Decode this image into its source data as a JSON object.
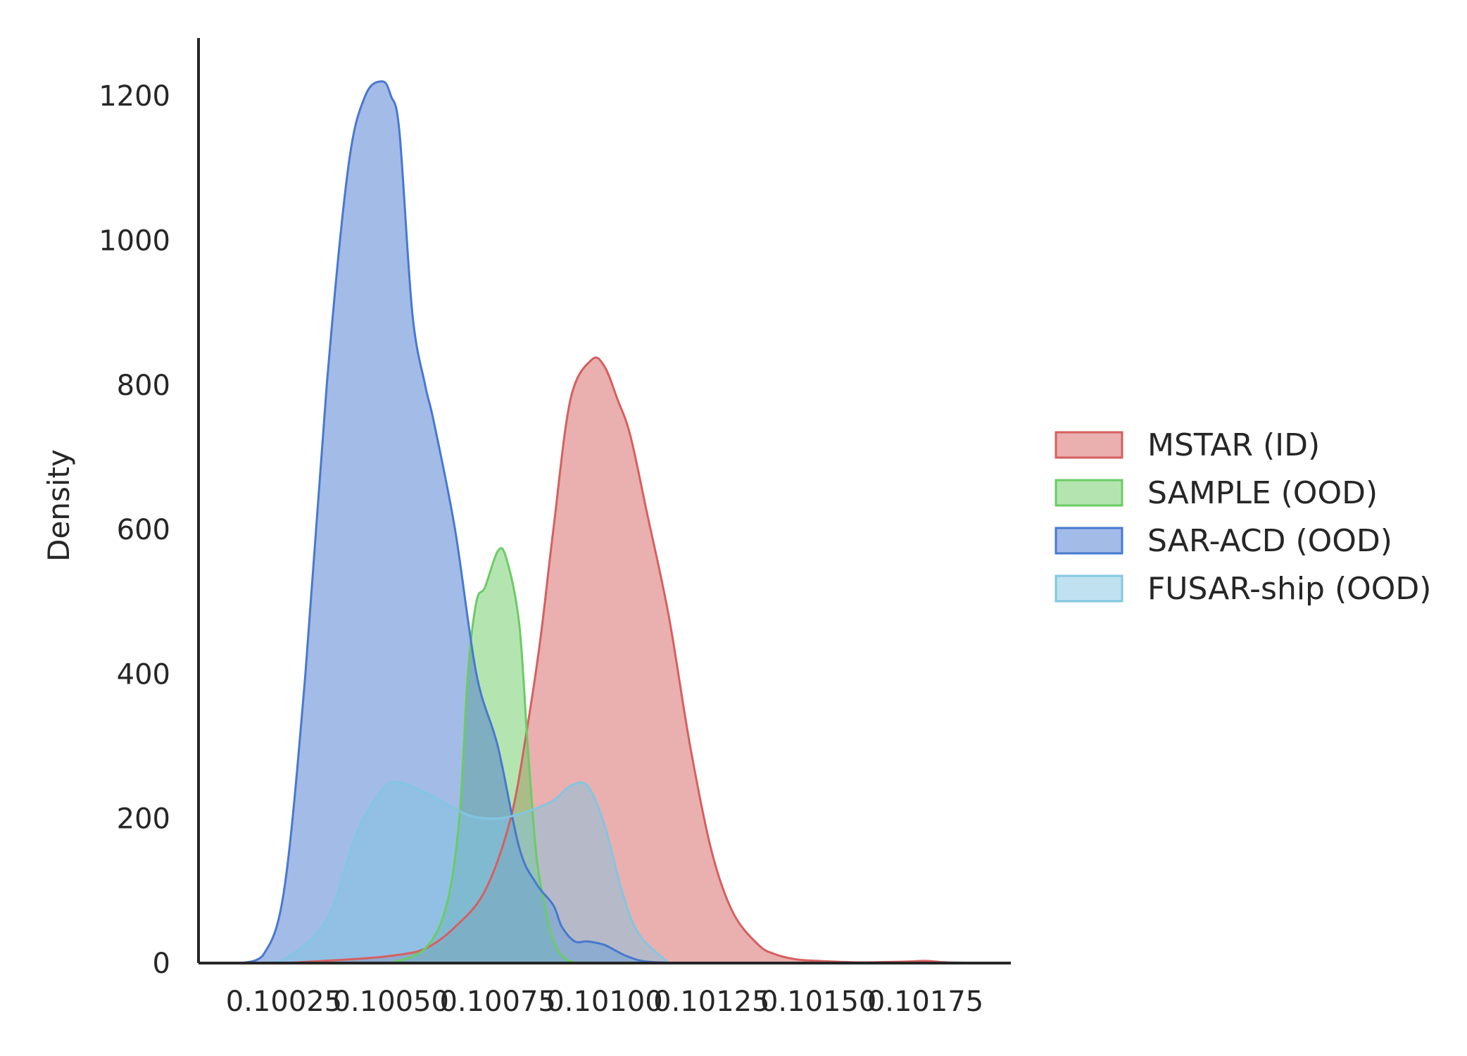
{
  "chart_data": {
    "type": "area",
    "subtype": "kde",
    "xlabel": "",
    "ylabel": "Density",
    "xlim": [
      0.10005,
      0.10195
    ],
    "ylim": [
      0,
      1280
    ],
    "x_ticks": [
      0.10025,
      0.1005,
      0.10075,
      0.101,
      0.10125,
      0.1015,
      0.10175
    ],
    "x_tick_labels": [
      "0.10025",
      "0.10050",
      "0.10075",
      "0.10100",
      "0.10125",
      "0.10150",
      "0.10175"
    ],
    "y_ticks": [
      0,
      200,
      400,
      600,
      800,
      1000,
      1200
    ],
    "y_tick_labels": [
      "0",
      "200",
      "400",
      "600",
      "800",
      "1000",
      "1200"
    ],
    "grid": false,
    "legend_position": "right",
    "series": [
      {
        "name": "MSTAR (ID)",
        "color": "#d65f5f",
        "fill_opacity": 0.5,
        "x": [
          0.10025,
          0.1004,
          0.1005,
          0.10058,
          0.10065,
          0.10072,
          0.10078,
          0.10082,
          0.10085,
          0.10088,
          0.10092,
          0.10097,
          0.101,
          0.10103,
          0.10106,
          0.1011,
          0.10115,
          0.1012,
          0.10125,
          0.1013,
          0.10136,
          0.1014,
          0.10145,
          0.1015,
          0.1016,
          0.1017,
          0.10175,
          0.1018,
          0.1019
        ],
        "y": [
          0,
          5,
          10,
          20,
          50,
          100,
          200,
          330,
          450,
          600,
          780,
          835,
          825,
          780,
          730,
          620,
          480,
          300,
          155,
          70,
          25,
          12,
          5,
          3,
          1,
          2,
          3,
          1,
          0
        ]
      },
      {
        "name": "SAMPLE (OOD)",
        "color": "#6acc64",
        "fill_opacity": 0.5,
        "x": [
          0.1005,
          0.10058,
          0.10063,
          0.10066,
          0.10068,
          0.1007,
          0.10072,
          0.10075,
          0.10077,
          0.1008,
          0.10082,
          0.10084,
          0.10086,
          0.10088,
          0.10091,
          0.10095
        ],
        "y": [
          0,
          20,
          80,
          200,
          400,
          500,
          520,
          570,
          560,
          470,
          300,
          150,
          80,
          30,
          5,
          0
        ]
      },
      {
        "name": "SAR-ACD (OOD)",
        "color": "#4878d0",
        "fill_opacity": 0.5,
        "x": [
          0.10015,
          0.1002,
          0.10025,
          0.1003,
          0.10035,
          0.1004,
          0.10044,
          0.10048,
          0.1005,
          0.10052,
          0.10055,
          0.10058,
          0.1006,
          0.10065,
          0.1007,
          0.10075,
          0.1008,
          0.10084,
          0.10088,
          0.1009,
          0.10093,
          0.10096,
          0.101,
          0.10105,
          0.1011,
          0.1012
        ],
        "y": [
          0,
          10,
          100,
          400,
          800,
          1100,
          1200,
          1220,
          1200,
          1150,
          900,
          800,
          750,
          600,
          400,
          300,
          160,
          110,
          80,
          50,
          30,
          30,
          25,
          10,
          2,
          0
        ]
      },
      {
        "name": "FUSAR-ship (OOD)",
        "color": "#82c6e2",
        "fill_opacity": 0.5,
        "x": [
          0.1002,
          0.10025,
          0.10035,
          0.10042,
          0.10048,
          0.10052,
          0.1006,
          0.10068,
          0.10075,
          0.10082,
          0.10088,
          0.10092,
          0.10096,
          0.101,
          0.10104,
          0.10108,
          0.10115
        ],
        "y": [
          0,
          5,
          60,
          180,
          240,
          250,
          230,
          205,
          200,
          210,
          225,
          245,
          245,
          190,
          100,
          40,
          0
        ]
      }
    ]
  }
}
